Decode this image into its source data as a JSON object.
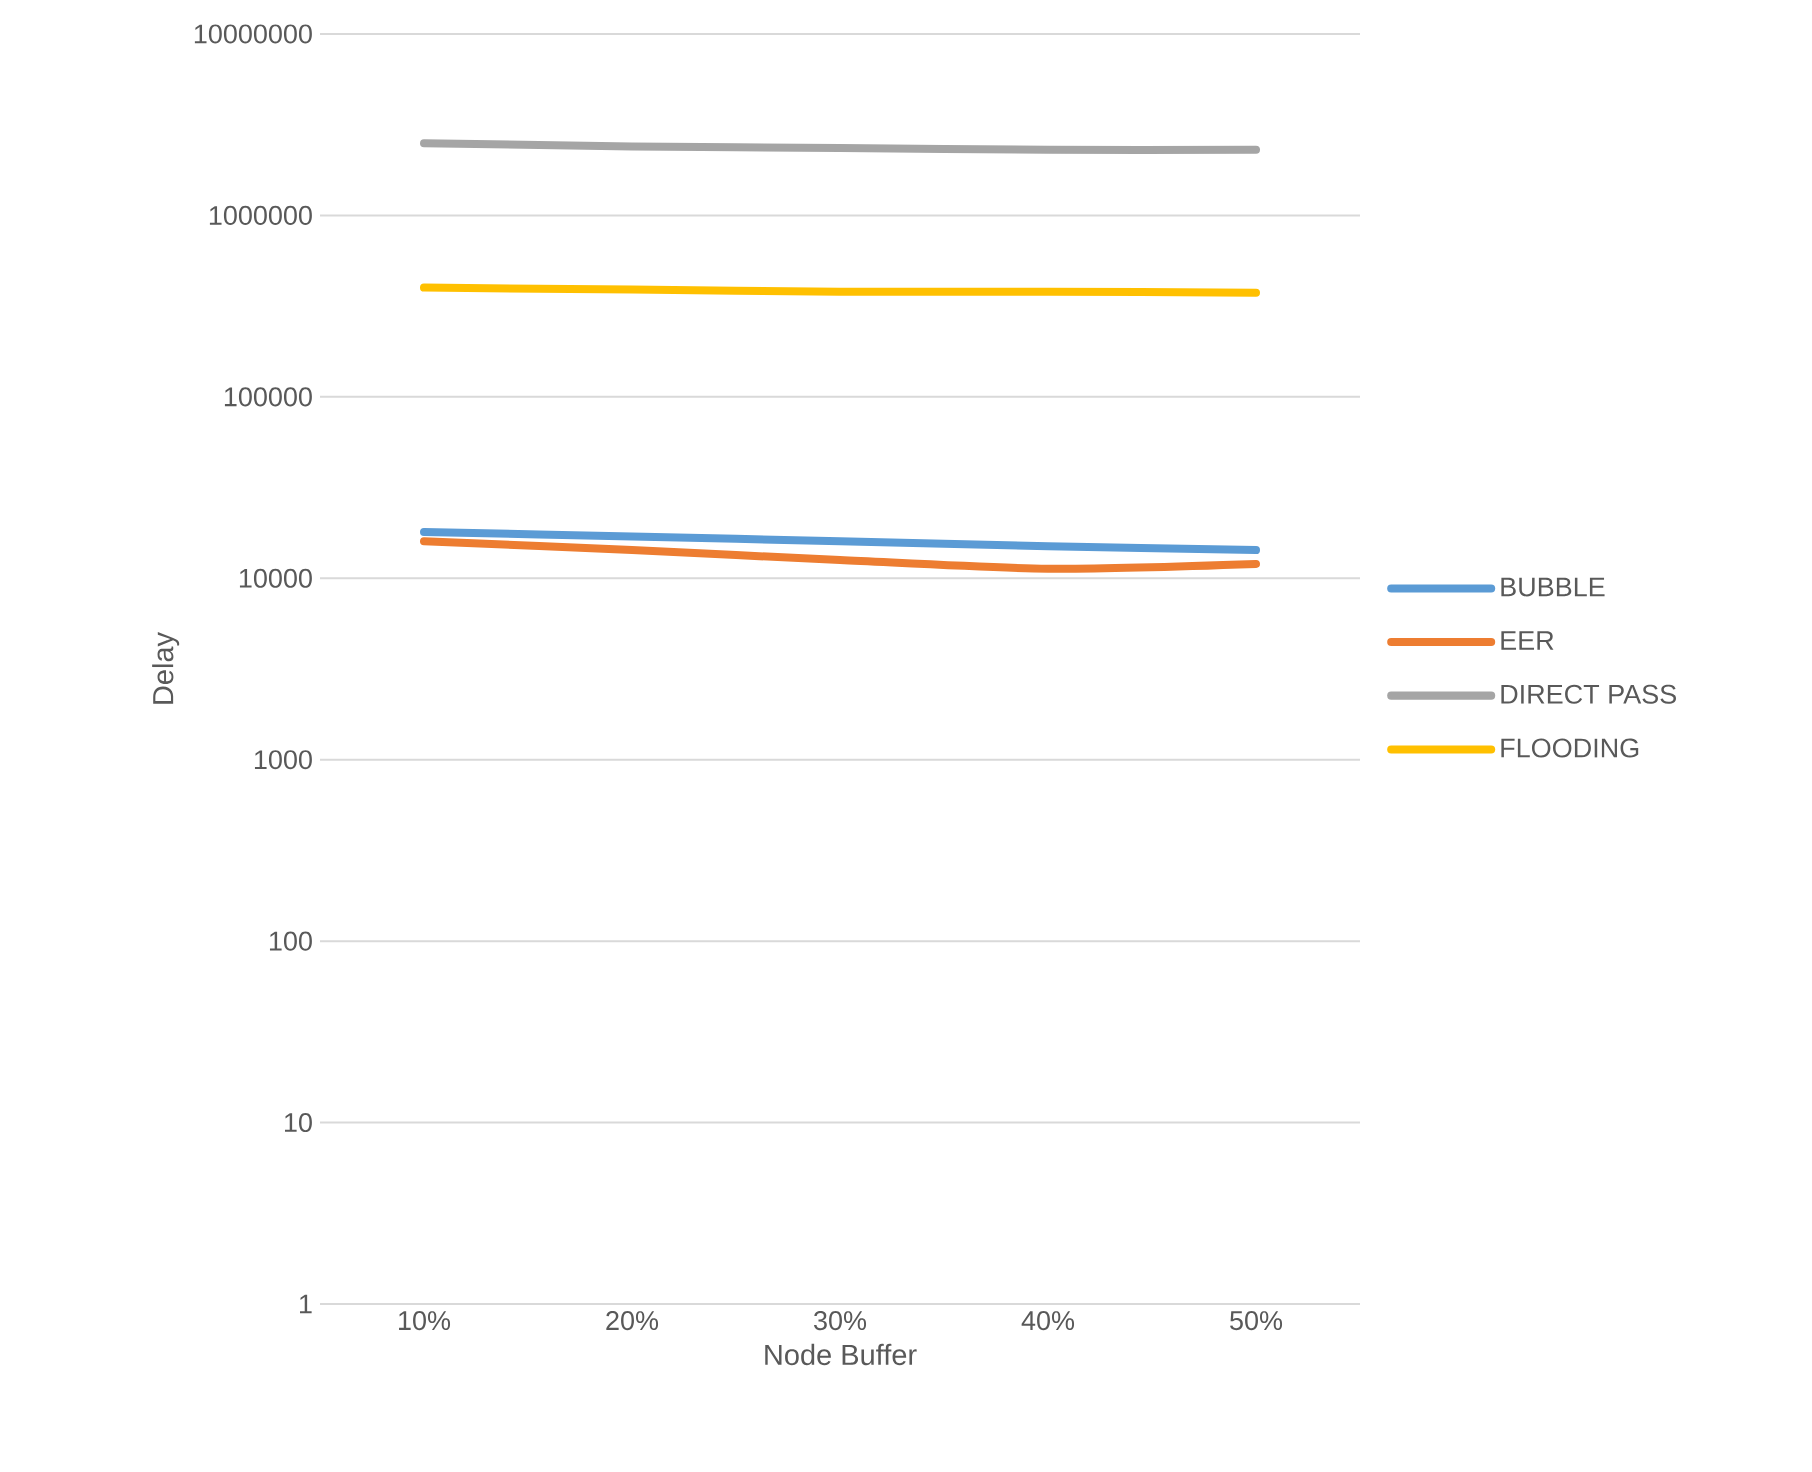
{
  "chart_data": {
    "type": "line",
    "xlabel": "Node Buffer",
    "ylabel": "Delay",
    "categories": [
      "10%",
      "20%",
      "30%",
      "40%",
      "50%"
    ],
    "series": [
      {
        "name": "BUBBLE",
        "color": "#5b9bd5",
        "values": [
          18000,
          17000,
          16000,
          15000,
          14300
        ]
      },
      {
        "name": "EER",
        "color": "#ed7d31",
        "values": [
          16000,
          14300,
          12600,
          11300,
          12000
        ]
      },
      {
        "name": "DIRECT PASS",
        "color": "#a5a5a5",
        "values": [
          2500000,
          2400000,
          2350000,
          2300000,
          2300000
        ]
      },
      {
        "name": "FLOODING",
        "color": "#ffc000",
        "values": [
          400000,
          390000,
          380000,
          380000,
          375000
        ]
      }
    ],
    "log": "y",
    "ylim": [
      1,
      10000000
    ],
    "yticks": [
      1,
      10,
      100,
      1000,
      10000,
      100000,
      1000000,
      10000000
    ],
    "grid": "y",
    "legend": "right",
    "marker": "none",
    "line_style": "solid"
  }
}
